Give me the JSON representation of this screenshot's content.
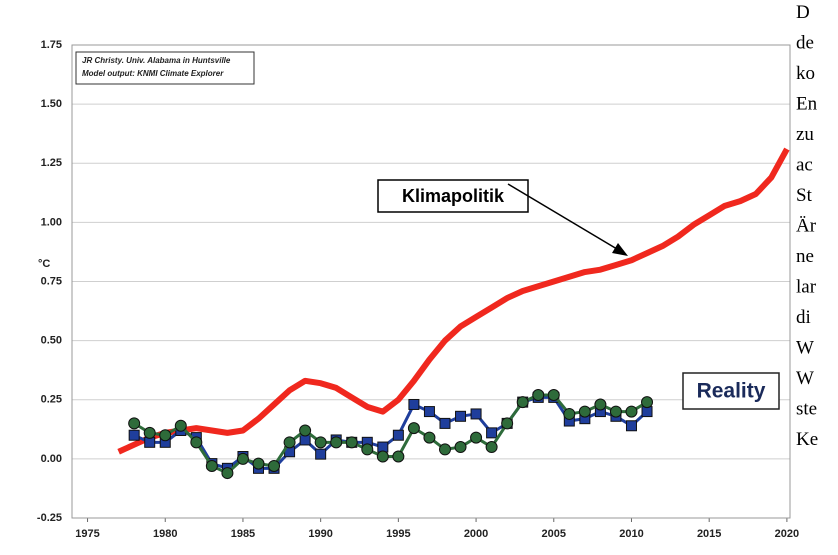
{
  "chart_data": {
    "type": "line",
    "y_label": "°C",
    "source_lines": [
      "JR Christy. Univ. Alabama in Huntsville",
      "Model output: KNMI Climate Explorer"
    ],
    "annotations": [
      "Klimapolitik",
      "Reality"
    ],
    "xlim": [
      1974,
      2020.2
    ],
    "xticks": [
      1975,
      1980,
      1985,
      1990,
      1995,
      2000,
      2005,
      2010,
      2015,
      2020
    ],
    "ylim": [
      -0.25,
      1.75
    ],
    "yticks": [
      {
        "value": -0.25,
        "label": "-0.25"
      },
      {
        "value": 0,
        "label": "0.00"
      },
      0.25,
      {
        "value": 0.5,
        "label": "0.50"
      },
      0.75,
      {
        "value": 1,
        "label": "1.00"
      },
      1.25,
      {
        "value": 1.5,
        "label": "1.50"
      },
      1.75
    ],
    "grid": true,
    "series": [
      {
        "name": "Klimapolitik",
        "color": "#f0281e",
        "marker": "none",
        "x": [
          1977,
          1978,
          1979,
          1980,
          1981,
          1982,
          1983,
          1984,
          1985,
          1986,
          1987,
          1988,
          1989,
          1990,
          1991,
          1992,
          1993,
          1994,
          1995,
          1996,
          1997,
          1998,
          1999,
          2000,
          2001,
          2002,
          2003,
          2004,
          2005,
          2006,
          2007,
          2008,
          2009,
          2010,
          2011,
          2012,
          2013,
          2014,
          2015,
          2016,
          2017,
          2018,
          2019,
          2020
        ],
        "values": [
          0.03,
          0.06,
          0.09,
          0.11,
          0.12,
          0.13,
          0.12,
          0.11,
          0.12,
          0.17,
          0.23,
          0.29,
          0.33,
          0.32,
          0.3,
          0.26,
          0.22,
          0.2,
          0.25,
          0.33,
          0.42,
          0.5,
          0.56,
          0.6,
          0.64,
          0.68,
          0.71,
          0.73,
          0.75,
          0.77,
          0.79,
          0.8,
          0.82,
          0.84,
          0.87,
          0.9,
          0.94,
          0.99,
          1.03,
          1.07,
          1.09,
          1.12,
          1.19,
          1.31
        ]
      },
      {
        "name": "Reality",
        "color": "#1f3e9c",
        "marker": "square",
        "x": [
          1978,
          1979,
          1980,
          1981,
          1982,
          1983,
          1984,
          1985,
          1986,
          1987,
          1988,
          1989,
          1990,
          1991,
          1992,
          1993,
          1994,
          1995,
          1996,
          1997,
          1998,
          1999,
          2000,
          2001,
          2002,
          2003,
          2004,
          2005,
          2006,
          2007,
          2008,
          2009,
          2010,
          2011
        ],
        "values": [
          0.1,
          0.07,
          0.07,
          0.12,
          0.09,
          -0.02,
          -0.04,
          0.01,
          -0.04,
          -0.04,
          0.03,
          0.08,
          0.02,
          0.08,
          0.07,
          0.07,
          0.05,
          0.1,
          0.23,
          0.2,
          0.15,
          0.18,
          0.19,
          0.11,
          0.15,
          0.24,
          0.26,
          0.26,
          0.16,
          0.17,
          0.2,
          0.18,
          0.14,
          0.2
        ]
      },
      {
        "name": "Reality",
        "color": "#2e6b3a",
        "marker": "circle",
        "x": [
          1978,
          1979,
          1980,
          1981,
          1982,
          1983,
          1984,
          1985,
          1986,
          1987,
          1988,
          1989,
          1990,
          1991,
          1992,
          1993,
          1994,
          1995,
          1996,
          1997,
          1998,
          1999,
          2000,
          2001,
          2002,
          2003,
          2004,
          2005,
          2006,
          2007,
          2008,
          2009,
          2010,
          2011
        ],
        "values": [
          0.15,
          0.11,
          0.1,
          0.14,
          0.07,
          -0.03,
          -0.06,
          0.0,
          -0.02,
          -0.03,
          0.07,
          0.12,
          0.07,
          0.07,
          0.07,
          0.04,
          0.01,
          0.01,
          0.13,
          0.09,
          0.04,
          0.05,
          0.09,
          0.05,
          0.15,
          0.24,
          0.27,
          0.27,
          0.19,
          0.2,
          0.23,
          0.2,
          0.2,
          0.24
        ]
      }
    ]
  },
  "side_text": [
    "D",
    "de",
    "ko",
    "En",
    "zu",
    "ac",
    "St",
    "Är",
    "ne",
    "lar",
    "di",
    "W",
    "W",
    "ste",
    "Ke"
  ]
}
